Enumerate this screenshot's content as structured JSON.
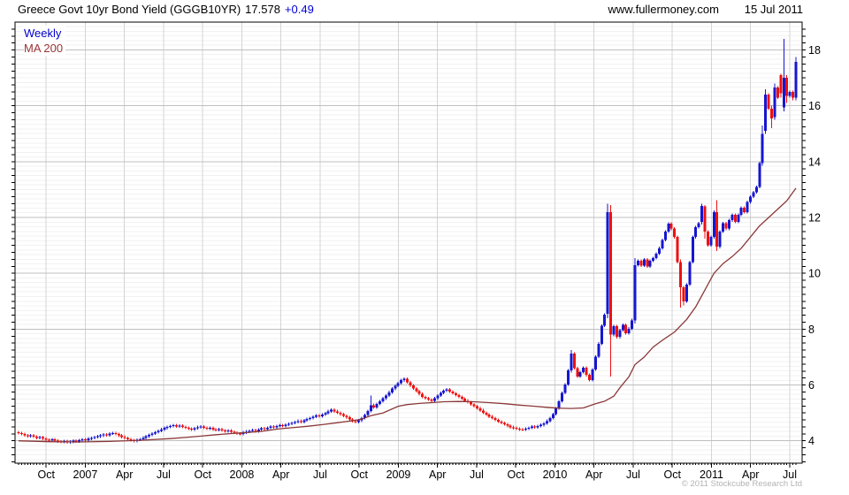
{
  "header": {
    "title": "Greece Govt 10yr Bond Yield (GGGB10YR)",
    "last_price": "17.578",
    "change": "+0.49",
    "website": "www.fullermoney.com",
    "date": "15 Jul 2011"
  },
  "legend": {
    "series1_label": "Weekly",
    "series2_label": "MA 200"
  },
  "footer": {
    "copyright": "© 2011 Stockcube Research Ltd"
  },
  "chart_data": {
    "type": "candlestick+line",
    "title": "Greece Govt 10yr Bond Yield (GGGB10YR)",
    "frequency": "weekly",
    "period_shown": "Aug 2006 - Jul 2011",
    "ylim": [
      3.2,
      19.0
    ],
    "y_tick_labels": [
      4,
      6,
      8,
      10,
      12,
      14,
      16,
      18
    ],
    "x_axis_labels": [
      "Oct",
      "2007",
      "Apr",
      "Jul",
      "Oct",
      "2008",
      "Apr",
      "Jul",
      "Oct",
      "2009",
      "Apr",
      "Jul",
      "Oct",
      "2010",
      "Apr",
      "Jul",
      "Oct",
      "2011",
      "Apr",
      "Jul"
    ],
    "grid": {
      "major_h_step": 2,
      "minor_h_step": 0.1667,
      "vertical_every": "quarter"
    },
    "colors": {
      "up_candle": "#1616d1",
      "down_candle": "#ee1010",
      "ma_line": "#8b3838",
      "legend_weekly": "#0000cc",
      "legend_ma": "#993333",
      "change_text": "#0000dd",
      "major_grid": "#bfbfbf",
      "minor_grid": "#f2f2f2",
      "vert_grid": "#d4d4d4",
      "copyright_gray": "#b3b3b3"
    },
    "first_open": 4.31,
    "closes": [
      4.28,
      4.24,
      4.2,
      4.17,
      4.2,
      4.15,
      4.1,
      4.13,
      4.08,
      4.04,
      4.02,
      4.06,
      4.01,
      3.98,
      3.96,
      3.99,
      3.95,
      3.97,
      4.01,
      3.98,
      4.02,
      4.06,
      4.03,
      4.08,
      4.1,
      4.13,
      4.16,
      4.19,
      4.23,
      4.2,
      4.26,
      4.28,
      4.24,
      4.19,
      4.14,
      4.1,
      4.05,
      4.02,
      4.0,
      4.04,
      4.06,
      4.11,
      4.16,
      4.21,
      4.26,
      4.31,
      4.36,
      4.41,
      4.46,
      4.5,
      4.53,
      4.56,
      4.52,
      4.55,
      4.5,
      4.47,
      4.44,
      4.41,
      4.45,
      4.49,
      4.51,
      4.47,
      4.43,
      4.46,
      4.41,
      4.39,
      4.42,
      4.37,
      4.34,
      4.37,
      4.32,
      4.29,
      4.26,
      4.24,
      4.3,
      4.33,
      4.36,
      4.39,
      4.35,
      4.4,
      4.45,
      4.42,
      4.47,
      4.51,
      4.48,
      4.53,
      4.56,
      4.53,
      4.58,
      4.61,
      4.64,
      4.67,
      4.71,
      4.68,
      4.74,
      4.78,
      4.81,
      4.86,
      4.91,
      4.88,
      4.94,
      4.99,
      5.06,
      5.12,
      5.06,
      5.0,
      4.95,
      4.89,
      4.84,
      4.77,
      4.71,
      4.67,
      4.73,
      4.82,
      4.92,
      5.07,
      5.28,
      5.2,
      5.32,
      5.42,
      5.52,
      5.62,
      5.74,
      5.87,
      5.97,
      6.07,
      6.17,
      6.22,
      6.1,
      5.98,
      5.88,
      5.78,
      5.68,
      5.58,
      5.53,
      5.48,
      5.44,
      5.52,
      5.62,
      5.72,
      5.8,
      5.84,
      5.76,
      5.7,
      5.64,
      5.58,
      5.51,
      5.44,
      5.38,
      5.31,
      5.24,
      5.17,
      5.09,
      5.01,
      4.94,
      4.87,
      4.81,
      4.75,
      4.69,
      4.64,
      4.59,
      4.54,
      4.49,
      4.46,
      4.43,
      4.41,
      4.4,
      4.44,
      4.47,
      4.51,
      4.48,
      4.53,
      4.57,
      4.63,
      4.71,
      4.81,
      4.96,
      5.16,
      5.42,
      5.72,
      6.02,
      6.52,
      7.12,
      6.6,
      6.3,
      6.46,
      6.62,
      6.36,
      6.18,
      6.56,
      7.02,
      7.48,
      8.12,
      8.52,
      12.2,
      7.8,
      8.1,
      7.72,
      7.96,
      8.16,
      7.86,
      8.02,
      8.32,
      10.3,
      10.45,
      10.28,
      10.5,
      10.25,
      10.45,
      10.55,
      10.7,
      10.9,
      11.2,
      11.5,
      11.78,
      11.6,
      11.3,
      10.4,
      9.5,
      9.0,
      9.6,
      10.4,
      11.3,
      11.65,
      11.8,
      12.42,
      11.5,
      11.0,
      11.3,
      12.2,
      10.95,
      11.5,
      11.8,
      11.6,
      11.9,
      12.1,
      11.85,
      12.1,
      12.35,
      12.2,
      12.55,
      12.75,
      12.9,
      13.1,
      13.95,
      15.0,
      16.4,
      15.9,
      15.55,
      16.65,
      16.3,
      16.45,
      17.0,
      16.35,
      16.5,
      16.3,
      17.58
    ],
    "ohlc_overrides": {
      "116": [
        5.07,
        5.62,
        5.02,
        5.28
      ],
      "182": [
        6.52,
        7.25,
        6.45,
        7.12
      ],
      "194": [
        8.55,
        12.5,
        8.4,
        12.2
      ],
      "195": [
        12.2,
        12.45,
        6.3,
        7.8
      ],
      "203": [
        8.32,
        10.55,
        8.2,
        10.3
      ],
      "218": [
        10.4,
        10.5,
        8.78,
        9.5
      ],
      "219": [
        9.5,
        9.55,
        8.85,
        9.0
      ],
      "225": [
        11.85,
        12.5,
        11.75,
        12.42
      ],
      "226": [
        12.4,
        12.45,
        11.25,
        11.5
      ],
      "230": [
        12.2,
        12.62,
        10.8,
        10.95
      ],
      "245": [
        13.95,
        15.3,
        13.85,
        15.0
      ],
      "246": [
        15.1,
        16.6,
        15.0,
        16.4
      ],
      "248": [
        15.9,
        16.0,
        15.2,
        15.55
      ],
      "249": [
        15.6,
        16.8,
        15.5,
        16.65
      ],
      "251": [
        17.1,
        17.15,
        16.3,
        16.45
      ],
      "252": [
        15.95,
        18.4,
        15.8,
        17.0
      ],
      "253": [
        17.0,
        17.1,
        16.1,
        16.35
      ],
      "255": [
        16.5,
        16.55,
        16.2,
        16.3
      ],
      "256": [
        16.3,
        17.75,
        16.2,
        17.58
      ]
    },
    "ma200_points": [
      [
        0,
        4.0
      ],
      [
        10,
        3.97
      ],
      [
        20,
        3.96
      ],
      [
        30,
        3.98
      ],
      [
        40,
        4.02
      ],
      [
        50,
        4.08
      ],
      [
        55,
        4.12
      ],
      [
        60,
        4.17
      ],
      [
        65,
        4.22
      ],
      [
        70,
        4.26
      ],
      [
        75,
        4.3
      ],
      [
        80,
        4.34
      ],
      [
        85,
        4.42
      ],
      [
        90,
        4.47
      ],
      [
        95,
        4.52
      ],
      [
        100,
        4.58
      ],
      [
        105,
        4.65
      ],
      [
        110,
        4.72
      ],
      [
        113,
        4.78
      ],
      [
        116,
        4.9
      ],
      [
        120,
        5.0
      ],
      [
        125,
        5.24
      ],
      [
        128,
        5.3
      ],
      [
        132,
        5.34
      ],
      [
        136,
        5.37
      ],
      [
        140,
        5.4
      ],
      [
        145,
        5.41
      ],
      [
        150,
        5.4
      ],
      [
        155,
        5.37
      ],
      [
        160,
        5.33
      ],
      [
        165,
        5.28
      ],
      [
        170,
        5.24
      ],
      [
        174,
        5.2
      ],
      [
        178,
        5.17
      ],
      [
        182,
        5.16
      ],
      [
        186,
        5.18
      ],
      [
        190,
        5.33
      ],
      [
        193,
        5.42
      ],
      [
        196,
        5.6
      ],
      [
        198,
        5.9
      ],
      [
        201,
        6.3
      ],
      [
        203,
        6.73
      ],
      [
        206,
        7.0
      ],
      [
        209,
        7.36
      ],
      [
        212,
        7.6
      ],
      [
        216,
        7.9
      ],
      [
        220,
        8.35
      ],
      [
        223,
        8.8
      ],
      [
        226,
        9.4
      ],
      [
        229,
        10.0
      ],
      [
        232,
        10.35
      ],
      [
        235,
        10.6
      ],
      [
        238,
        10.9
      ],
      [
        241,
        11.3
      ],
      [
        244,
        11.7
      ],
      [
        247,
        12.0
      ],
      [
        250,
        12.3
      ],
      [
        253,
        12.6
      ],
      [
        256,
        13.05
      ]
    ]
  }
}
